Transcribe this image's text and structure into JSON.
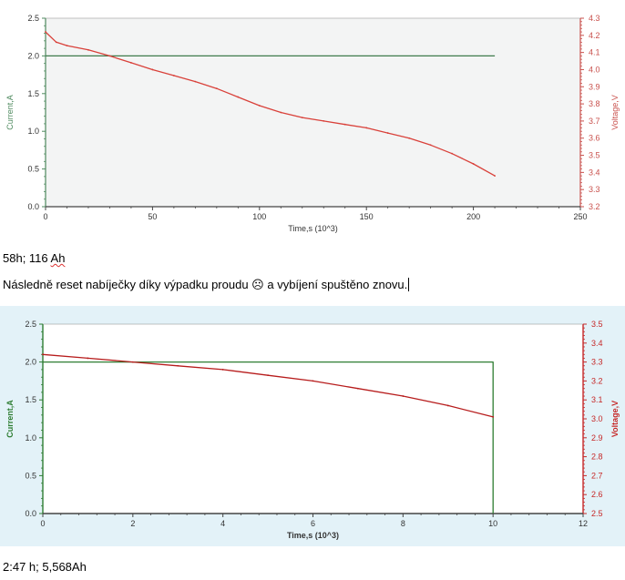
{
  "chart_data": [
    {
      "type": "line",
      "title": "",
      "xlabel": "Time,s (10^3)",
      "ylabel_left": "Current,A",
      "ylabel_right": "Voltage,V",
      "xlim": [
        0,
        250
      ],
      "ylim_left": [
        0,
        2.5
      ],
      "ylim_right": [
        3.2,
        4.3
      ],
      "x_ticks": [
        "0",
        "50",
        "100",
        "150",
        "200",
        "250"
      ],
      "y_ticks_left": [
        "0.0",
        "0.5",
        "1.0",
        "1.5",
        "2.0",
        "2.5"
      ],
      "y_ticks_right": [
        "3.2",
        "3.3",
        "3.4",
        "3.5",
        "3.6",
        "3.7",
        "3.8",
        "3.9",
        "4.0",
        "4.1",
        "4.2",
        "4.3"
      ],
      "grid": false,
      "colors": {
        "current": "#3e7a4c",
        "voltage": "#d9413a",
        "background": "#f3f4f4",
        "frame": "#ffffff",
        "left_axis": "#4f8a5f",
        "right_axis": "#c9514d"
      },
      "series": [
        {
          "axis": "left",
          "x": [
            0,
            210
          ],
          "y": [
            2.0,
            2.0
          ]
        },
        {
          "axis": "right",
          "x": [
            0,
            5,
            10,
            20,
            30,
            40,
            50,
            60,
            70,
            80,
            90,
            100,
            110,
            120,
            130,
            140,
            150,
            160,
            170,
            180,
            190,
            200,
            210
          ],
          "y": [
            4.22,
            4.16,
            4.14,
            4.115,
            4.08,
            4.04,
            4.0,
            3.965,
            3.93,
            3.89,
            3.84,
            3.79,
            3.75,
            3.72,
            3.7,
            3.68,
            3.66,
            3.63,
            3.6,
            3.56,
            3.51,
            3.45,
            3.38
          ]
        }
      ]
    },
    {
      "type": "line",
      "title": "",
      "xlabel": "Time,s (10^3)",
      "ylabel_left": "Current,A",
      "ylabel_right": "Voltage,V",
      "xlim": [
        0,
        12
      ],
      "ylim_left": [
        0,
        2.5
      ],
      "ylim_right": [
        2.5,
        3.5
      ],
      "x_ticks": [
        "0",
        "2",
        "4",
        "6",
        "8",
        "10",
        "12"
      ],
      "y_ticks_left": [
        "0.0",
        "0.5",
        "1.0",
        "1.5",
        "2.0",
        "2.5"
      ],
      "y_ticks_right": [
        "2.5",
        "2.6",
        "2.7",
        "2.8",
        "2.9",
        "3.0",
        "3.1",
        "3.2",
        "3.3",
        "3.4",
        "3.5"
      ],
      "grid": false,
      "colors": {
        "current": "#2e7d32",
        "voltage": "#b71c1c",
        "background": "#ffffff",
        "frame": "#e3f2f8",
        "left_axis": "#2e7d32",
        "right_axis": "#c62828"
      },
      "series": [
        {
          "axis": "left",
          "x": [
            0,
            10,
            10
          ],
          "y": [
            2.0,
            2.0,
            0.0
          ]
        },
        {
          "axis": "right",
          "x": [
            0,
            1,
            2,
            3,
            4,
            5,
            6,
            7,
            8,
            9,
            10
          ],
          "y": [
            3.34,
            3.32,
            3.3,
            3.28,
            3.26,
            3.23,
            3.2,
            3.16,
            3.12,
            3.07,
            3.01
          ]
        }
      ]
    }
  ],
  "text": {
    "caption1_pre": "58h; 116 ",
    "caption1_unit": "Ah",
    "paragraph_pre": "Následně reset nabíječky díky výpadku proudu ",
    "paragraph_emoji": "☹",
    "paragraph_post": " a vybíjení spuštěno znovu.",
    "caption2": "2:47 h; 5,568Ah"
  }
}
